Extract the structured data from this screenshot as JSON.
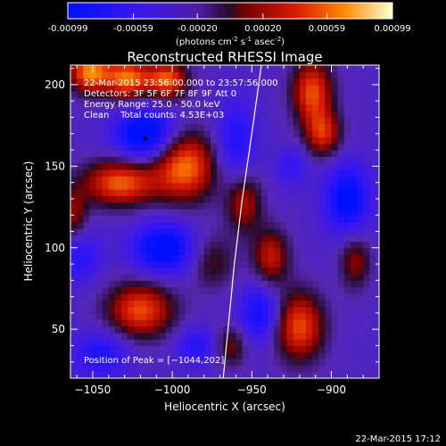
{
  "chart_data": {
    "type": "heatmap",
    "title": "Reconstructed RHESSI Image",
    "xlabel": "Heliocentric X (arcsec)",
    "ylabel": "Heliocentric Y (arcsec)",
    "xlim": [
      -1064,
      -870
    ],
    "ylim": [
      20,
      212
    ],
    "xticks": [
      -1050,
      -1000,
      -950,
      -900
    ],
    "xtick_labels": [
      "−1050",
      "−1000",
      "−950",
      "−900"
    ],
    "yticks": [
      50,
      100,
      150,
      200
    ],
    "ytick_labels": [
      "50",
      "100",
      "150",
      "200"
    ],
    "colorbar": {
      "min": -0.00099,
      "max": 0.00099,
      "ticks": [
        -0.00099,
        -0.00059,
        -0.0002,
        0.0002,
        0.00059,
        0.00099
      ],
      "tick_labels": [
        "-0.00099",
        "-0.00059",
        "-0.00020",
        "0.00020",
        "0.00059",
        "0.00099"
      ],
      "label_main": "(photons cm",
      "label_sup1": "-2",
      "label_mid1": " s",
      "label_sup2": "-1",
      "label_mid2": " asec",
      "label_sup3": "-2",
      "label_end": ")"
    },
    "info_lines": [
      "22-Mar-2015 23:56:00.000 to 23:57:56.000",
      "Detectors: 3F 5F 6F 7F 8F 9F  Att 0",
      "Energy Range: 25.0 - 50.0 keV",
      "Clean    Total counts: 4.53E+03"
    ],
    "peak_label": "Position of Peak = [−1044,202]",
    "peak": [
      -1044,
      202
    ],
    "blobs": [
      {
        "x": -1052,
        "y": 208,
        "sx": 9,
        "sy": 9,
        "v": 1.0
      },
      {
        "x": -1028,
        "y": 204,
        "sx": 10,
        "sy": 9,
        "v": 0.95
      },
      {
        "x": -1003,
        "y": 203,
        "sx": 9,
        "sy": 8,
        "v": 0.9
      },
      {
        "x": -912,
        "y": 196,
        "sx": 9,
        "sy": 14,
        "v": 0.85
      },
      {
        "x": -905,
        "y": 170,
        "sx": 8,
        "sy": 10,
        "v": 0.7
      },
      {
        "x": -1033,
        "y": 140,
        "sx": 16,
        "sy": 10,
        "v": 0.9
      },
      {
        "x": -992,
        "y": 150,
        "sx": 14,
        "sy": 15,
        "v": 0.95
      },
      {
        "x": -955,
        "y": 128,
        "sx": 8,
        "sy": 13,
        "v": 0.6
      },
      {
        "x": -938,
        "y": 95,
        "sx": 8,
        "sy": 12,
        "v": 0.65
      },
      {
        "x": -1020,
        "y": 62,
        "sx": 15,
        "sy": 12,
        "v": 0.85
      },
      {
        "x": -975,
        "y": 92,
        "sx": 10,
        "sy": 12,
        "v": 0.4
      },
      {
        "x": -920,
        "y": 52,
        "sx": 11,
        "sy": 15,
        "v": 0.85
      },
      {
        "x": -885,
        "y": 92,
        "sx": 7,
        "sy": 12,
        "v": 0.5
      },
      {
        "x": -1062,
        "y": 120,
        "sx": 6,
        "sy": 12,
        "v": 0.5
      },
      {
        "x": -963,
        "y": 40,
        "sx": 7,
        "sy": 9,
        "v": 0.45
      },
      {
        "x": -1017,
        "y": 170,
        "sx": 13,
        "sy": 11,
        "v": -0.9
      },
      {
        "x": -1005,
        "y": 100,
        "sx": 14,
        "sy": 11,
        "v": -0.8
      },
      {
        "x": -1058,
        "y": 95,
        "sx": 9,
        "sy": 11,
        "v": -0.45
      },
      {
        "x": -960,
        "y": 165,
        "sx": 9,
        "sy": 18,
        "v": -0.5
      },
      {
        "x": -945,
        "y": 60,
        "sx": 9,
        "sy": 12,
        "v": -0.6
      },
      {
        "x": -890,
        "y": 130,
        "sx": 10,
        "sy": 15,
        "v": -0.75
      },
      {
        "x": -1045,
        "y": 35,
        "sx": 12,
        "sy": 10,
        "v": -0.5
      },
      {
        "x": -985,
        "y": 40,
        "sx": 9,
        "sy": 8,
        "v": -0.45
      },
      {
        "x": -925,
        "y": 150,
        "sx": 7,
        "sy": 8,
        "v": -0.35
      }
    ],
    "limb_points": [
      [
        -968,
        20
      ],
      [
        -965,
        50
      ],
      [
        -961,
        90
      ],
      [
        -956,
        130
      ],
      [
        -950,
        170
      ],
      [
        -944,
        212
      ]
    ]
  },
  "footer_timestamp": "22-Mar-2015 17:12"
}
